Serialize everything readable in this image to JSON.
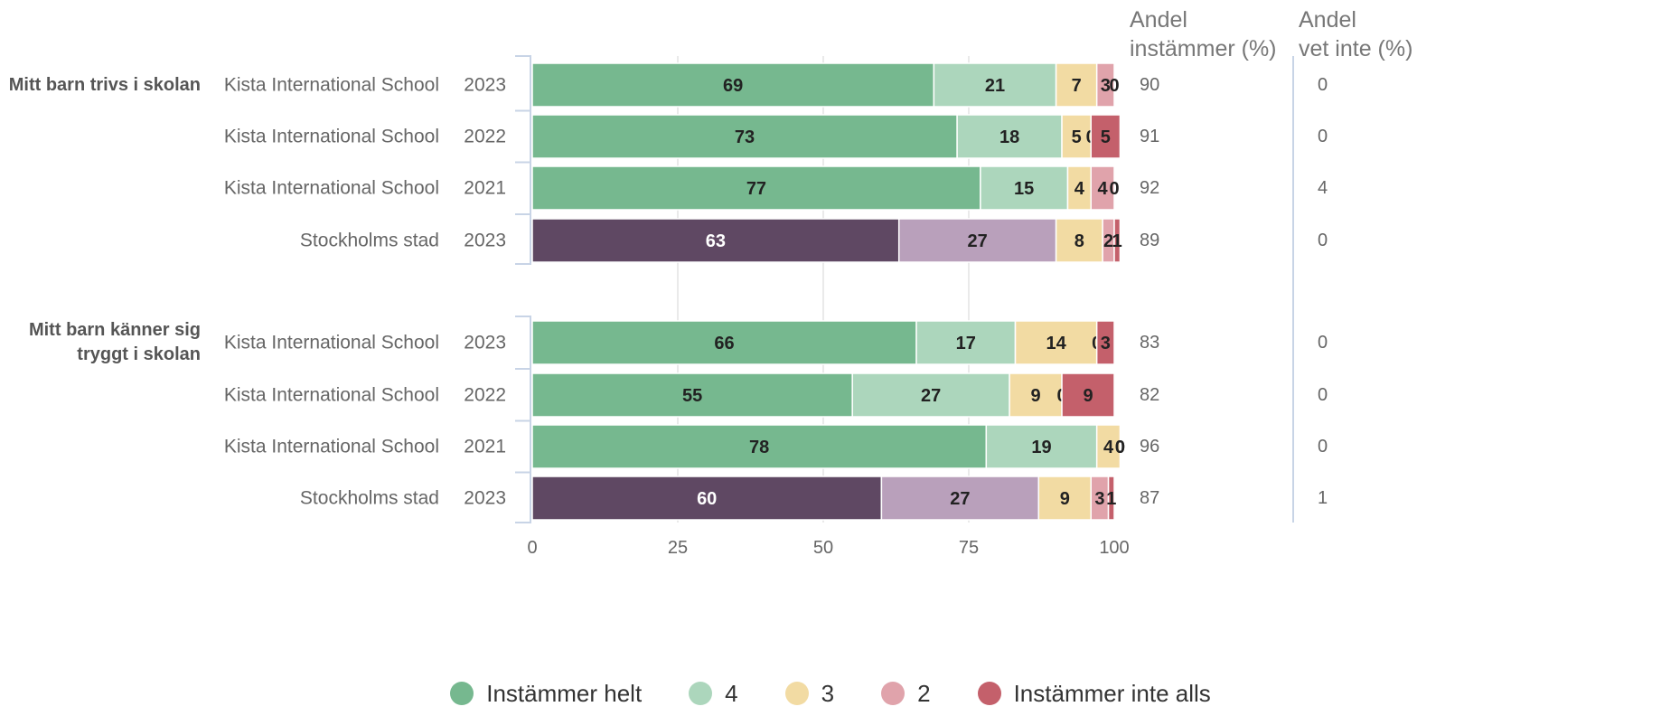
{
  "columns": {
    "share_agree": "Andel\ninstämmer (%)",
    "share_dont_know": "Andel\nvet inte (%)"
  },
  "legend": [
    {
      "label": "Instämmer helt",
      "color": "#76b88f"
    },
    {
      "label": "4",
      "color": "#acd6bc"
    },
    {
      "label": "3",
      "color": "#f2dba3"
    },
    {
      "label": "2",
      "color": "#e0a3ab"
    },
    {
      "label": "Instämmer inte alls",
      "color": "#c4606b"
    }
  ],
  "chart_data": {
    "type": "bar",
    "orientation": "horizontal-stacked",
    "xlim": [
      0,
      100
    ],
    "xticks": [
      "0",
      "25",
      "50",
      "75",
      "100"
    ],
    "grid": true,
    "legend_position": "bottom",
    "series_names": [
      "Instämmer helt",
      "4",
      "3",
      "2",
      "Instämmer inte alls"
    ],
    "city_colors": [
      "#5f4863",
      "#b9a0bb",
      "#f2dba3",
      "#e0a3ab",
      "#c4606b"
    ],
    "groups": [
      {
        "question": "Mitt barn trivs i skolan",
        "rows": [
          {
            "entity": "Kista International School",
            "year": "2023",
            "values": [
              69,
              21,
              7,
              3,
              0
            ],
            "agree": "90",
            "dont_know": "0",
            "city": false
          },
          {
            "entity": "Kista International School",
            "year": "2022",
            "values": [
              73,
              18,
              5,
              0,
              5
            ],
            "agree": "91",
            "dont_know": "0",
            "city": false
          },
          {
            "entity": "Kista International School",
            "year": "2021",
            "values": [
              77,
              15,
              4,
              4,
              0
            ],
            "agree": "92",
            "dont_know": "4",
            "city": false
          },
          {
            "entity": "Stockholms stad",
            "year": "2023",
            "values": [
              63,
              27,
              8,
              2,
              1
            ],
            "agree": "89",
            "dont_know": "0",
            "city": true
          }
        ]
      },
      {
        "question": "Mitt barn känner sig\ntryggt i skolan",
        "rows": [
          {
            "entity": "Kista International School",
            "year": "2023",
            "values": [
              66,
              17,
              14,
              0,
              3
            ],
            "agree": "83",
            "dont_know": "0",
            "city": false
          },
          {
            "entity": "Kista International School",
            "year": "2022",
            "values": [
              55,
              27,
              9,
              0,
              9
            ],
            "agree": "82",
            "dont_know": "0",
            "city": false
          },
          {
            "entity": "Kista International School",
            "year": "2021",
            "values": [
              78,
              19,
              4,
              0,
              0
            ],
            "agree": "96",
            "dont_know": "0",
            "city": false
          },
          {
            "entity": "Stockholms stad",
            "year": "2023",
            "values": [
              60,
              27,
              9,
              3,
              1
            ],
            "agree": "87",
            "dont_know": "1",
            "city": true
          }
        ]
      }
    ]
  }
}
